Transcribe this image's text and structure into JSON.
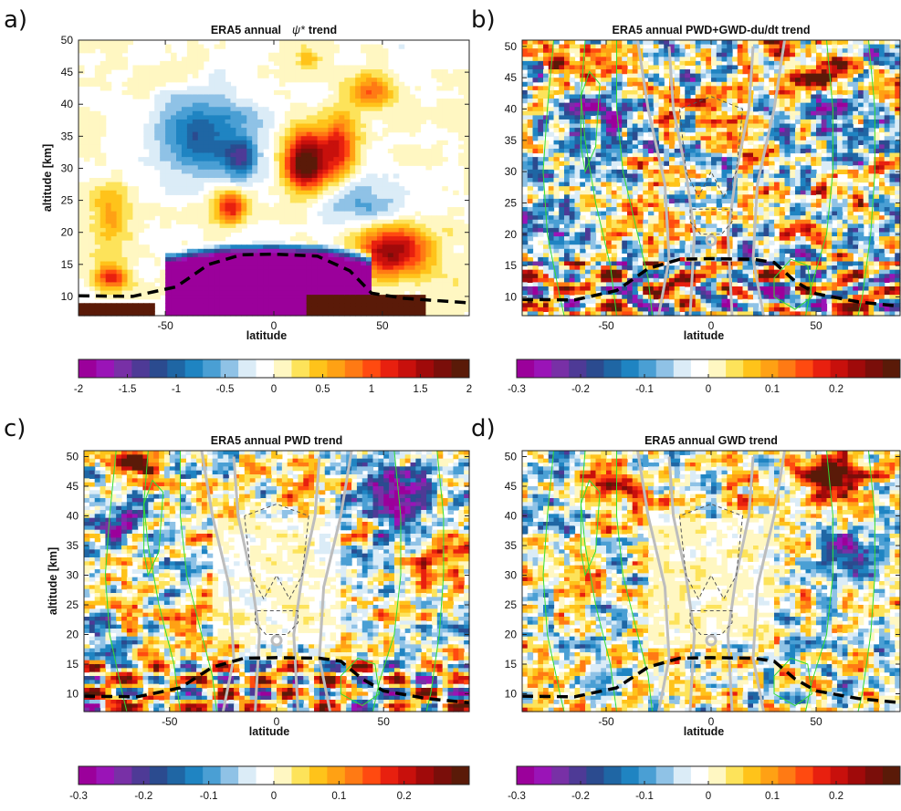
{
  "figure": {
    "colormap": [
      "#9b009b",
      "#9a14b7",
      "#7830a6",
      "#4e3a96",
      "#2b4b8f",
      "#1f66a4",
      "#1f84c2",
      "#4a9fd4",
      "#8fc2e6",
      "#dbecf7",
      "#ffffff",
      "#fff7c2",
      "#fde35a",
      "#ffc31a",
      "#ffa114",
      "#ff7a14",
      "#ff4a10",
      "#e8200f",
      "#c8100c",
      "#a00a0a",
      "#7a0e0a",
      "#5a1a08"
    ],
    "colors": {
      "tropopause": "#000000",
      "wind_contours": "#33dd33",
      "gray_contours": "#bdbdbd",
      "dashed_contours": "#555555"
    }
  },
  "chart_data": [
    {
      "type": "heatmap",
      "panel_label": "a)",
      "title": "ERA5 annual",
      "title_symbol": "ψ*",
      "title_suffix": "trend",
      "xlabel": "latitude",
      "ylabel": "altitude [km]",
      "xlim": [
        -90,
        90
      ],
      "ylim": [
        7,
        50
      ],
      "xticks": [
        -50,
        0,
        50
      ],
      "yticks": [
        10,
        15,
        20,
        25,
        30,
        35,
        40,
        45,
        50
      ],
      "colorbar": {
        "range": [
          -2,
          2
        ],
        "ticks": [
          "-2",
          "-1.5",
          "-1",
          "-0.5",
          "0",
          "0.5",
          "1",
          "1.5",
          "2"
        ],
        "tick_values": [
          -2,
          -1.5,
          -1,
          -0.5,
          0,
          0.5,
          1,
          1.5,
          2
        ]
      },
      "overlays": {
        "green_wind_contours": false,
        "gray_contours": false
      },
      "tropopause_km": [
        [
          -90,
          10.1
        ],
        [
          -65,
          10.0
        ],
        [
          -45,
          11.5
        ],
        [
          -30,
          15.0
        ],
        [
          -15,
          16.5
        ],
        [
          0,
          16.6
        ],
        [
          20,
          16.3
        ],
        [
          35,
          14.0
        ],
        [
          45,
          10.5
        ],
        [
          60,
          9.7
        ],
        [
          90,
          9.0
        ]
      ]
    },
    {
      "type": "heatmap",
      "panel_label": "b)",
      "title": "ERA5 annual PWD+GWD-du/dt trend",
      "xlabel": "latitude",
      "ylabel": "",
      "xlim": [
        -90,
        90
      ],
      "ylim": [
        7,
        51
      ],
      "xticks": [
        -50,
        0,
        50
      ],
      "yticks": [
        10,
        15,
        20,
        25,
        30,
        35,
        40,
        45,
        50
      ],
      "colorbar": {
        "range": [
          -0.3,
          0.3
        ],
        "ticks": [
          "-0.3",
          "-0.2",
          "-0.1",
          "0",
          "0.1",
          "0.2"
        ],
        "tick_values": [
          -0.3,
          -0.2,
          -0.1,
          0,
          0.1,
          0.2
        ]
      },
      "overlays": {
        "green_wind_contours": true,
        "gray_contours": true
      },
      "tropopause_km": [
        [
          -90,
          9.6
        ],
        [
          -65,
          9.5
        ],
        [
          -45,
          11.0
        ],
        [
          -30,
          14.5
        ],
        [
          -15,
          16.0
        ],
        [
          0,
          16.1
        ],
        [
          20,
          16.0
        ],
        [
          30,
          15.5
        ],
        [
          40,
          12.5
        ],
        [
          50,
          10.5
        ],
        [
          70,
          9.2
        ],
        [
          90,
          8.5
        ]
      ]
    },
    {
      "type": "heatmap",
      "panel_label": "c)",
      "title": "ERA5 annual PWD trend",
      "xlabel": "latitude",
      "ylabel": "altitude [km]",
      "xlim": [
        -90,
        90
      ],
      "ylim": [
        7,
        51
      ],
      "xticks": [
        -50,
        0,
        50
      ],
      "yticks": [
        10,
        15,
        20,
        25,
        30,
        35,
        40,
        45,
        50
      ],
      "colorbar": {
        "range": [
          -0.3,
          0.3
        ],
        "ticks": [
          "-0.3",
          "-0.2",
          "-0.1",
          "0",
          "0.1",
          "0.2"
        ],
        "tick_values": [
          -0.3,
          -0.2,
          -0.1,
          0,
          0.1,
          0.2
        ]
      },
      "overlays": {
        "green_wind_contours": true,
        "gray_contours": true
      },
      "tropopause_km": [
        [
          -90,
          9.6
        ],
        [
          -65,
          9.5
        ],
        [
          -45,
          11.0
        ],
        [
          -30,
          14.5
        ],
        [
          -15,
          16.0
        ],
        [
          0,
          16.1
        ],
        [
          20,
          16.0
        ],
        [
          30,
          15.5
        ],
        [
          40,
          12.5
        ],
        [
          50,
          10.5
        ],
        [
          70,
          9.2
        ],
        [
          90,
          8.5
        ]
      ]
    },
    {
      "type": "heatmap",
      "panel_label": "d)",
      "title": "ERA5 annual GWD trend",
      "xlabel": "latitude",
      "ylabel": "",
      "xlim": [
        -90,
        90
      ],
      "ylim": [
        7,
        51
      ],
      "xticks": [
        -50,
        0,
        50
      ],
      "yticks": [
        10,
        15,
        20,
        25,
        30,
        35,
        40,
        45,
        50
      ],
      "colorbar": {
        "range": [
          -0.3,
          0.3
        ],
        "ticks": [
          "-0.3",
          "-0.2",
          "-0.1",
          "0",
          "0.1",
          "0.2"
        ],
        "tick_values": [
          -0.3,
          -0.2,
          -0.1,
          0,
          0.1,
          0.2
        ]
      },
      "overlays": {
        "green_wind_contours": true,
        "gray_contours": true
      },
      "tropopause_km": [
        [
          -90,
          9.6
        ],
        [
          -65,
          9.5
        ],
        [
          -45,
          11.0
        ],
        [
          -30,
          14.5
        ],
        [
          -15,
          16.0
        ],
        [
          0,
          16.1
        ],
        [
          20,
          16.0
        ],
        [
          30,
          15.5
        ],
        [
          40,
          12.5
        ],
        [
          50,
          10.5
        ],
        [
          70,
          9.2
        ],
        [
          90,
          8.5
        ]
      ]
    }
  ]
}
